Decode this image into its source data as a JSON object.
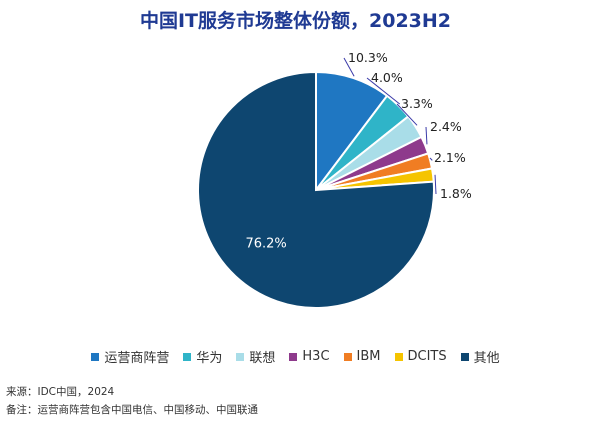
{
  "chart_data": {
    "type": "pie",
    "title": "中国IT服务市场整体份额，2023H2",
    "slices": [
      {
        "name": "运营商阵营",
        "value": 10.3,
        "label": "10.3%",
        "color": "#1f77c2"
      },
      {
        "name": "华为",
        "value": 4.0,
        "label": "4.0%",
        "color": "#2fb4c8"
      },
      {
        "name": "联想",
        "value": 3.3,
        "label": "3.3%",
        "color": "#a9dde8"
      },
      {
        "name": "H3C",
        "value": 2.4,
        "label": "2.4%",
        "color": "#8e3a8c"
      },
      {
        "name": "IBM",
        "value": 2.1,
        "label": "2.1%",
        "color": "#f07d23"
      },
      {
        "name": "DCITS",
        "value": 1.8,
        "label": "1.8%",
        "color": "#f5c400"
      },
      {
        "name": "其他",
        "value": 76.2,
        "label": "76.2%",
        "color": "#0e4670"
      }
    ],
    "legend_position": "bottom"
  },
  "footer": {
    "source": "来源：IDC中国，2024",
    "note": "备注：运营商阵营包含中国电信、中国移动、中国联通"
  }
}
